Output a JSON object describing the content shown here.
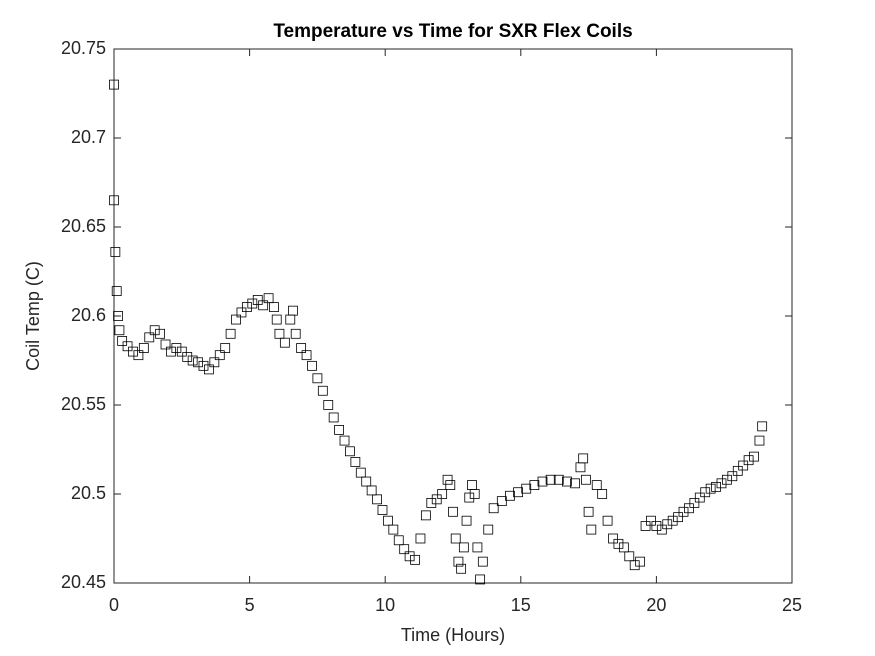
{
  "chart_data": {
    "type": "scatter",
    "title": "Temperature vs Time for SXR Flex Coils",
    "xlabel": "Time (Hours)",
    "ylabel": "Coil Temp (C)",
    "xlim": [
      0,
      25
    ],
    "ylim": [
      20.45,
      20.75
    ],
    "xticks": [
      0,
      5,
      10,
      15,
      20,
      25
    ],
    "yticks": [
      20.45,
      20.5,
      20.55,
      20.6,
      20.65,
      20.7,
      20.75
    ],
    "marker": "square",
    "color": "#000000",
    "x": [
      0.0,
      0.0,
      0.05,
      0.1,
      0.15,
      0.2,
      0.3,
      0.5,
      0.7,
      0.9,
      1.1,
      1.3,
      1.5,
      1.7,
      1.9,
      2.1,
      2.3,
      2.5,
      2.7,
      2.9,
      3.1,
      3.3,
      3.5,
      3.7,
      3.9,
      4.1,
      4.3,
      4.5,
      4.7,
      4.9,
      5.1,
      5.3,
      5.5,
      5.7,
      5.9,
      6.0,
      6.1,
      6.3,
      6.5,
      6.6,
      6.7,
      6.9,
      7.1,
      7.3,
      7.5,
      7.7,
      7.9,
      8.1,
      8.3,
      8.5,
      8.7,
      8.9,
      9.1,
      9.3,
      9.5,
      9.7,
      9.9,
      10.1,
      10.3,
      10.5,
      10.7,
      10.9,
      11.1,
      11.3,
      11.5,
      11.7,
      11.9,
      12.1,
      12.3,
      12.4,
      12.5,
      12.6,
      12.7,
      12.8,
      12.9,
      13.0,
      13.1,
      13.2,
      13.3,
      13.4,
      13.5,
      13.6,
      13.8,
      14.0,
      14.3,
      14.6,
      14.9,
      15.2,
      15.5,
      15.8,
      16.1,
      16.4,
      16.7,
      17.0,
      17.2,
      17.3,
      17.4,
      17.5,
      17.6,
      17.8,
      18.0,
      18.2,
      18.4,
      18.6,
      18.8,
      19.0,
      19.2,
      19.4,
      19.6,
      19.8,
      20.0,
      20.2,
      20.4,
      20.6,
      20.8,
      21.0,
      21.2,
      21.4,
      21.6,
      21.8,
      22.0,
      22.2,
      22.4,
      22.6,
      22.8,
      23.0,
      23.2,
      23.4,
      23.6,
      23.8,
      23.9
    ],
    "values": [
      20.73,
      20.665,
      20.636,
      20.614,
      20.6,
      20.592,
      20.586,
      20.583,
      20.58,
      20.578,
      20.582,
      20.588,
      20.592,
      20.59,
      20.584,
      20.58,
      20.582,
      20.58,
      20.577,
      20.575,
      20.574,
      20.572,
      20.57,
      20.574,
      20.578,
      20.582,
      20.59,
      20.598,
      20.602,
      20.605,
      20.607,
      20.609,
      20.606,
      20.61,
      20.605,
      20.598,
      20.59,
      20.585,
      20.598,
      20.603,
      20.59,
      20.582,
      20.578,
      20.572,
      20.565,
      20.558,
      20.55,
      20.543,
      20.536,
      20.53,
      20.524,
      20.518,
      20.512,
      20.507,
      20.502,
      20.497,
      20.491,
      20.485,
      20.48,
      20.474,
      20.469,
      20.465,
      20.463,
      20.475,
      20.488,
      20.495,
      20.497,
      20.5,
      20.508,
      20.505,
      20.49,
      20.475,
      20.462,
      20.458,
      20.47,
      20.485,
      20.498,
      20.505,
      20.5,
      20.47,
      20.452,
      20.462,
      20.48,
      20.492,
      20.496,
      20.499,
      20.501,
      20.503,
      20.505,
      20.507,
      20.508,
      20.508,
      20.507,
      20.506,
      20.515,
      20.52,
      20.508,
      20.49,
      20.48,
      20.505,
      20.5,
      20.485,
      20.475,
      20.472,
      20.47,
      20.465,
      20.46,
      20.462,
      20.482,
      20.485,
      20.482,
      20.48,
      20.483,
      20.485,
      20.487,
      20.49,
      20.492,
      20.495,
      20.498,
      20.501,
      20.503,
      20.504,
      20.506,
      20.508,
      20.51,
      20.513,
      20.516,
      20.519,
      20.521,
      20.53,
      20.538
    ]
  }
}
